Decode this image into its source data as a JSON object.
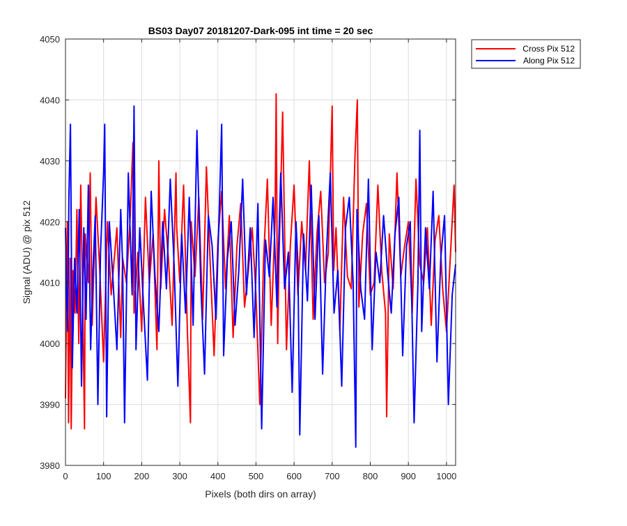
{
  "chart_data": {
    "type": "line",
    "title": "BS03 Day07 20181207-Dark-095 int time = 20 sec",
    "xlabel": "Pixels (both dirs on array)",
    "ylabel": "Signal (ADU) @ pix 512",
    "xlim": [
      0,
      1024
    ],
    "ylim": [
      3980,
      4050
    ],
    "xticks": [
      "0",
      "100",
      "200",
      "300",
      "400",
      "500",
      "600",
      "700",
      "800",
      "900",
      "1000"
    ],
    "yticks": [
      "3980",
      "3990",
      "4000",
      "4010",
      "4020",
      "4030",
      "4040",
      "4050"
    ],
    "grid": true,
    "legend_position": "outside-top-right",
    "series": [
      {
        "name": "Cross Pix 512",
        "color": "#ff0000",
        "x": [
          0,
          5,
          8,
          12,
          15,
          20,
          25,
          30,
          35,
          40,
          45,
          50,
          52,
          60,
          65,
          70,
          80,
          90,
          100,
          110,
          120,
          135,
          145,
          150,
          160,
          170,
          177,
          180,
          190,
          200,
          210,
          220,
          230,
          240,
          245,
          250,
          260,
          270,
          280,
          290,
          292,
          300,
          310,
          320,
          328,
          330,
          340,
          350,
          360,
          370,
          380,
          390,
          400,
          410,
          420,
          430,
          440,
          450,
          460,
          470,
          480,
          490,
          500,
          510,
          520,
          530,
          540,
          550,
          553,
          557,
          560,
          570,
          580,
          590,
          600,
          610,
          620,
          630,
          640,
          650,
          660,
          670,
          680,
          690,
          700,
          704,
          710,
          720,
          730,
          740,
          750,
          760,
          766,
          770,
          780,
          790,
          800,
          810,
          820,
          830,
          840,
          843,
          850,
          860,
          870,
          880,
          890,
          900,
          910,
          920,
          930,
          940,
          950,
          960,
          970,
          980,
          990,
          1000,
          1010,
          1020,
          1024
        ],
        "y": [
          3991,
          4020,
          3987,
          4014,
          3986,
          4012,
          4005,
          4022,
          4000,
          4026,
          4008,
          3986,
          4018,
          4010,
          4028,
          4003,
          4024,
          4012,
          3997,
          4020,
          4008,
          4019,
          4001,
          4014,
          4010,
          4021,
          4033,
          4005,
          4015,
          4002,
          4024,
          4010,
          4018,
          3999,
          4030,
          4009,
          4022,
          4014,
          4003,
          4028,
          4019,
          4010,
          4026,
          4002,
          3987,
          4020,
          4011,
          4024,
          4004,
          4029,
          4013,
          3998,
          4017,
          4025,
          4009,
          4021,
          4001,
          4016,
          4023,
          4006,
          4012,
          4019,
          4008,
          3990,
          4014,
          4027,
          4003,
          4020,
          4041,
          4000,
          4013,
          4038,
          3999,
          4016,
          4026,
          4008,
          4020,
          4012,
          4030,
          4004,
          4018,
          4025,
          4010,
          4015,
          4039,
          4012,
          4019,
          4002,
          4024,
          4011,
          4009,
          4031,
          4040,
          4006,
          4018,
          4023,
          4008,
          4010,
          4026,
          4012,
          4005,
          3988,
          4018,
          4009,
          4028,
          4011,
          4016,
          4020,
          4005,
          4027,
          4013,
          4010,
          4019,
          4003,
          4017,
          4021,
          4009,
          4002,
          4014,
          4026,
          4015
        ]
      },
      {
        "name": "Along Pix 512",
        "color": "#0000ff",
        "x": [
          0,
          3,
          6,
          9,
          13,
          18,
          24,
          30,
          36,
          42,
          48,
          54,
          60,
          66,
          72,
          78,
          85,
          92,
          100,
          103,
          108,
          115,
          125,
          135,
          145,
          150,
          155,
          165,
          175,
          180,
          185,
          195,
          205,
          215,
          225,
          235,
          245,
          255,
          265,
          275,
          285,
          295,
          305,
          315,
          325,
          335,
          345,
          355,
          365,
          375,
          385,
          395,
          405,
          410,
          415,
          425,
          435,
          445,
          455,
          465,
          475,
          485,
          495,
          505,
          515,
          525,
          535,
          545,
          555,
          565,
          575,
          585,
          595,
          605,
          610,
          615,
          625,
          635,
          645,
          655,
          665,
          675,
          685,
          695,
          705,
          715,
          725,
          735,
          745,
          755,
          762,
          765,
          775,
          785,
          795,
          805,
          815,
          825,
          835,
          845,
          855,
          865,
          875,
          885,
          895,
          905,
          915,
          925,
          930,
          935,
          945,
          955,
          965,
          975,
          985,
          995,
          1005,
          1015,
          1024
        ],
        "y": [
          4019,
          4008,
          4002,
          4024,
          4036,
          3996,
          4014,
          4005,
          4022,
          3993,
          4019,
          4004,
          4026,
          3999,
          4012,
          4021,
          3990,
          4015,
          4028,
          4036,
          3988,
          4020,
          4010,
          3999,
          4022,
          4013,
          3987,
          4028,
          4008,
          4039,
          3999,
          4019,
          4006,
          3994,
          4025,
          4011,
          4002,
          4020,
          4009,
          4027,
          4013,
          3993,
          4018,
          4005,
          4024,
          4003,
          4035,
          4010,
          3995,
          4021,
          4016,
          4004,
          4025,
          4036,
          3998,
          4014,
          4020,
          4003,
          4012,
          4027,
          4008,
          4019,
          4001,
          4023,
          3986,
          4017,
          4011,
          4024,
          4006,
          4028,
          4009,
          4015,
          3992,
          4020,
          4013,
          3985,
          4018,
          4007,
          4026,
          4004,
          4021,
          3995,
          4015,
          4028,
          4005,
          4012,
          3993,
          4019,
          4024,
          4010,
          3983,
          4022,
          4009,
          4004,
          4027,
          3999,
          4015,
          4010,
          4021,
          4012,
          4005,
          4018,
          4024,
          3998,
          4016,
          4020,
          3987,
          4010,
          4035,
          4002,
          4019,
          4009,
          4025,
          3997,
          4014,
          4021,
          3990,
          4008,
          4013
        ]
      }
    ]
  }
}
